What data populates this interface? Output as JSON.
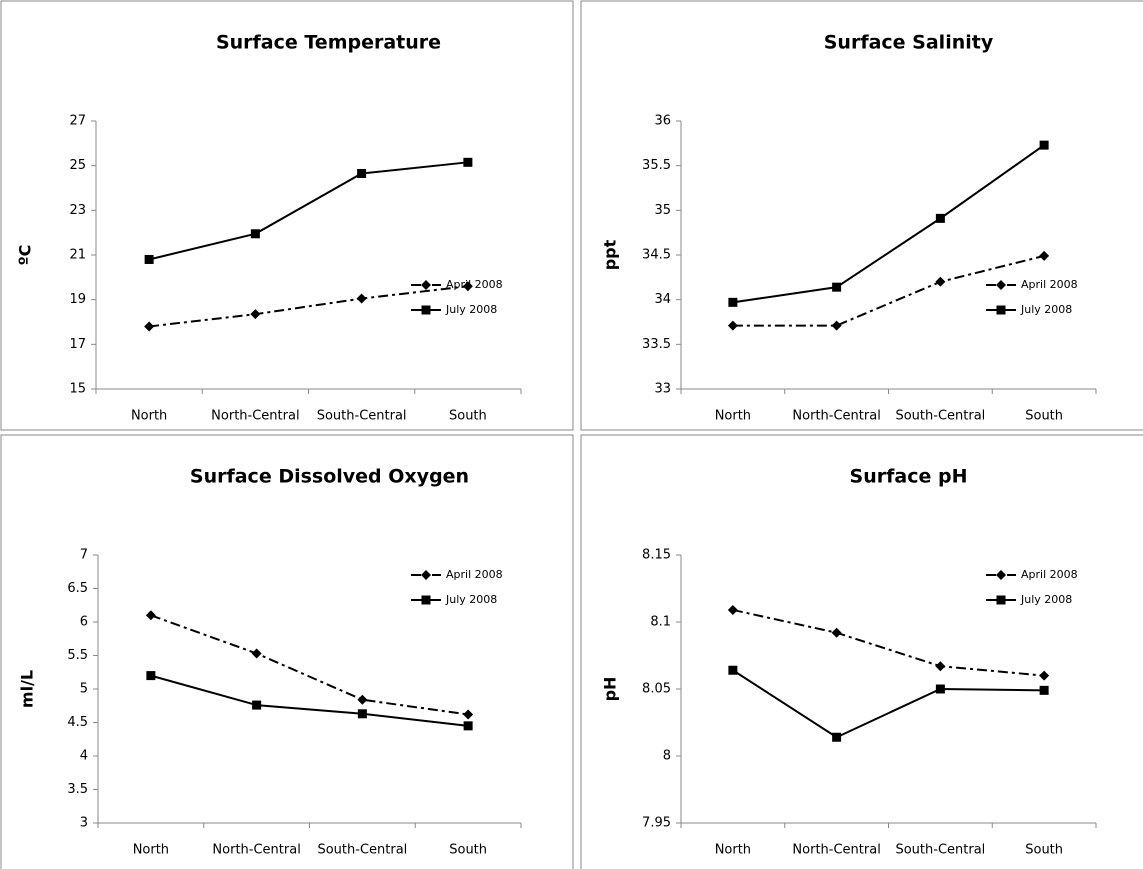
{
  "chart_data": [
    {
      "type": "line",
      "title": "Surface Temperature",
      "y_label": "ºC",
      "categories": [
        "North",
        "North-Central",
        "South-Central",
        "South"
      ],
      "ylim": [
        15,
        27
      ],
      "yticks": [
        15,
        17,
        19,
        21,
        23,
        25,
        27
      ],
      "legend": "right",
      "series": [
        {
          "name": "April 2008",
          "color": "#000000",
          "style": "dashdot",
          "marker": "diamond",
          "values": [
            17.8,
            18.35,
            19.05,
            19.6
          ]
        },
        {
          "name": "July 2008",
          "color": "#000000",
          "style": "solid",
          "marker": "square",
          "values": [
            20.8,
            21.95,
            24.65,
            25.15
          ]
        }
      ]
    },
    {
      "type": "line",
      "title": "Surface Salinity",
      "y_label": "ppt",
      "categories": [
        "North",
        "North-Central",
        "South-Central",
        "South"
      ],
      "ylim": [
        33,
        36
      ],
      "yticks": [
        33,
        33.5,
        34,
        34.5,
        35,
        35.5,
        36
      ],
      "legend": "right",
      "series": [
        {
          "name": "April 2008",
          "color": "#000000",
          "style": "dashdot",
          "marker": "diamond",
          "values": [
            33.71,
            33.71,
            34.2,
            34.49
          ]
        },
        {
          "name": "July 2008",
          "color": "#000000",
          "style": "solid",
          "marker": "square",
          "values": [
            33.97,
            34.14,
            34.91,
            35.73
          ]
        }
      ]
    },
    {
      "type": "line",
      "title": "Surface Dissolved Oxygen",
      "y_label": "ml/L",
      "categories": [
        "North",
        "North-Central",
        "South-Central",
        "South"
      ],
      "ylim": [
        3,
        7
      ],
      "yticks": [
        3,
        3.5,
        4,
        4.5,
        5,
        5.5,
        6,
        6.5,
        7
      ],
      "legend": "upper right",
      "series": [
        {
          "name": "April 2008",
          "color": "#000000",
          "style": "dashdot",
          "marker": "diamond",
          "values": [
            6.1,
            5.53,
            4.84,
            4.62
          ]
        },
        {
          "name": "July 2008",
          "color": "#000000",
          "style": "solid",
          "marker": "square",
          "values": [
            5.2,
            4.76,
            4.63,
            4.45
          ]
        }
      ]
    },
    {
      "type": "line",
      "title": "Surface pH",
      "y_label": "pH",
      "categories": [
        "North",
        "North-Central",
        "South-Central",
        "South"
      ],
      "ylim": [
        7.95,
        8.15
      ],
      "yticks": [
        7.95,
        8,
        8.05,
        8.1,
        8.15
      ],
      "legend": "upper right",
      "series": [
        {
          "name": "April 2008",
          "color": "#000000",
          "style": "dashdot",
          "marker": "diamond",
          "values": [
            8.109,
            8.092,
            8.067,
            8.06
          ]
        },
        {
          "name": "July 2008",
          "color": "#000000",
          "style": "solid",
          "marker": "square",
          "values": [
            8.064,
            8.014,
            8.05,
            8.049
          ]
        }
      ]
    }
  ]
}
